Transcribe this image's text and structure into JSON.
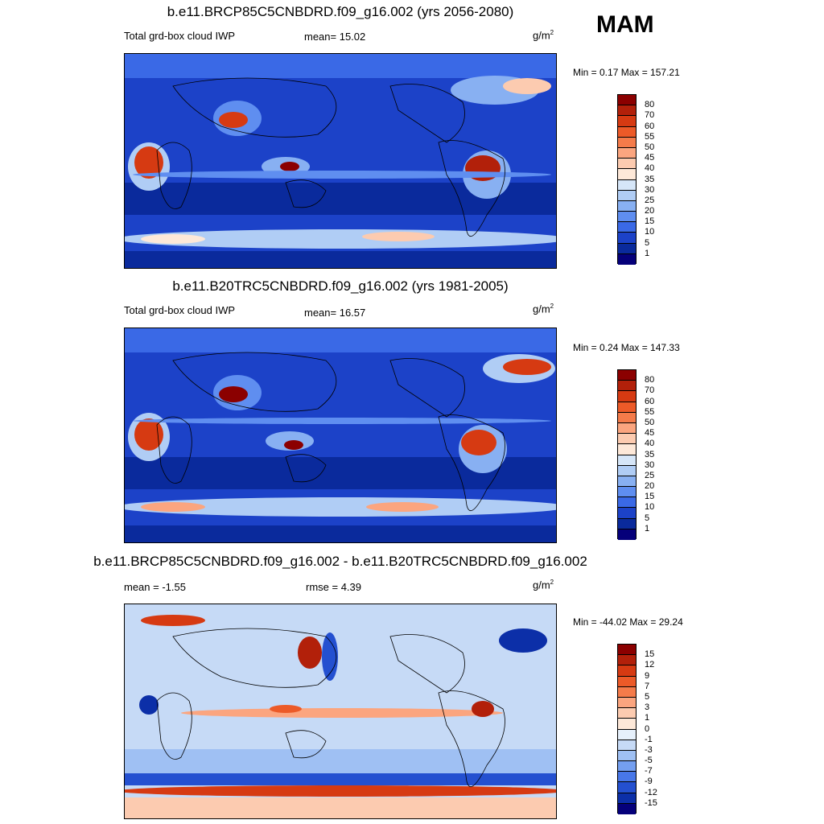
{
  "season": "MAM",
  "panels": [
    {
      "title": "b.e11.BRCP85C5CNBDRD.f09_g16.002 (yrs 2056-2080)",
      "left_label": "Total grd-box cloud IWP",
      "mid_label": "mean=  15.02",
      "unit": "g/m",
      "unit_sup": "2",
      "minmax": "Min =   0.17 Max = 157.21",
      "levels": [
        "80",
        "70",
        "60",
        "55",
        "50",
        "45",
        "40",
        "35",
        "30",
        "25",
        "20",
        "15",
        "10",
        "5",
        "1"
      ],
      "colors": [
        "#8b0000",
        "#b2200a",
        "#d63a12",
        "#ec5a28",
        "#f47b4a",
        "#fba57f",
        "#fccbb0",
        "#fde8d8",
        "#d6e6f8",
        "#b0cdf5",
        "#88b0f2",
        "#5f8ef0",
        "#3a69e6",
        "#1c42c8",
        "#0a2a9c",
        "#05007a"
      ]
    },
    {
      "title": "b.e11.B20TRC5CNBDRD.f09_g16.002 (yrs 1981-2005)",
      "left_label": "Total grd-box cloud IWP",
      "mid_label": "mean=  16.57",
      "unit": "g/m",
      "unit_sup": "2",
      "minmax": "Min =   0.24 Max = 147.33",
      "levels": [
        "80",
        "70",
        "60",
        "55",
        "50",
        "45",
        "40",
        "35",
        "30",
        "25",
        "20",
        "15",
        "10",
        "5",
        "1"
      ],
      "colors": [
        "#8b0000",
        "#b2200a",
        "#d63a12",
        "#ec5a28",
        "#f47b4a",
        "#fba57f",
        "#fccbb0",
        "#fde8d8",
        "#d6e6f8",
        "#b0cdf5",
        "#88b0f2",
        "#5f8ef0",
        "#3a69e6",
        "#1c42c8",
        "#0a2a9c",
        "#05007a"
      ]
    },
    {
      "title": "b.e11.BRCP85C5CNBDRD.f09_g16.002 - b.e11.B20TRC5CNBDRD.f09_g16.002",
      "left_label": "mean =  -1.55",
      "mid_label": "rmse =   4.39",
      "unit": "g/m",
      "unit_sup": "2",
      "minmax": "Min = -44.02 Max =  29.24",
      "levels": [
        "15",
        "12",
        "9",
        "7",
        "5",
        "3",
        "1",
        "0",
        "-1",
        "-3",
        "-5",
        "-7",
        "-9",
        "-12",
        "-15"
      ],
      "colors": [
        "#8b0000",
        "#b2200a",
        "#d63a12",
        "#ec5a28",
        "#f47b4a",
        "#fba57f",
        "#fccbb0",
        "#fde8d8",
        "#e6f0fb",
        "#c6daf6",
        "#9fc0f3",
        "#749ff0",
        "#4877e8",
        "#2450d0",
        "#0c2fa8",
        "#05007a"
      ]
    }
  ]
}
